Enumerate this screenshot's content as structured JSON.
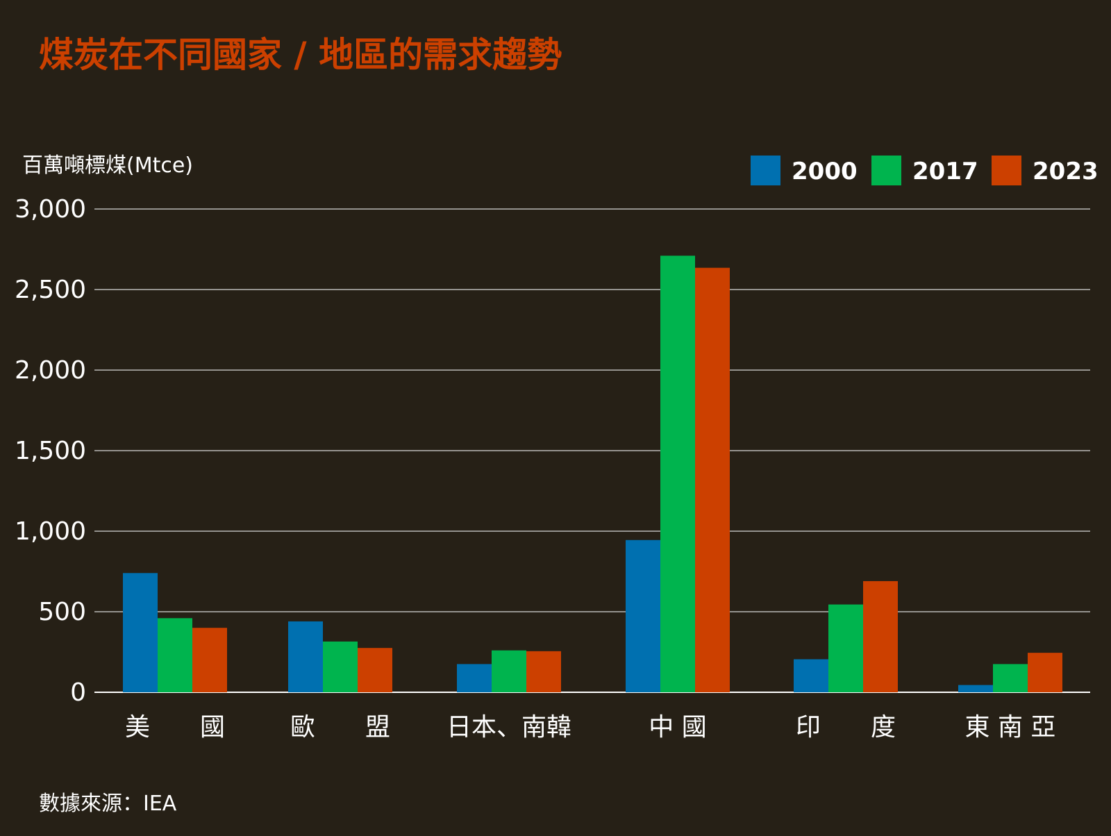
{
  "title": "煤炭在不同國家 / 地區的需求趨勢",
  "y_unit_label": "百萬噸標煤(Mtce)",
  "source": "數據來源：IEA",
  "colors": {
    "background": "#262016",
    "title": "#CC4000",
    "text": "#FFFFFF",
    "gridline": "#D8D8D8",
    "s2000": "#0070B0",
    "s2017": "#00B44E",
    "s2023": "#CC4000"
  },
  "chart_data": {
    "type": "bar",
    "title": "煤炭在不同國家 / 地區的需求趨勢",
    "ylabel": "百萬噸標煤(Mtce)",
    "xlabel": "",
    "categories": [
      "美　　國",
      "歐　　盟",
      "日本、南韓",
      "中 國",
      "印　　度",
      "東 南 亞"
    ],
    "series": [
      {
        "name": "2000",
        "color": "#0070B0",
        "values": [
          740,
          440,
          175,
          945,
          205,
          45
        ]
      },
      {
        "name": "2017",
        "color": "#00B44E",
        "values": [
          460,
          315,
          260,
          2710,
          545,
          175
        ]
      },
      {
        "name": "2023",
        "color": "#CC4000",
        "values": [
          400,
          275,
          255,
          2635,
          690,
          245
        ]
      }
    ],
    "ylim": [
      0,
      3000
    ],
    "yticks": [
      0,
      500,
      1000,
      1500,
      2000,
      2500,
      3000
    ],
    "ytick_labels": [
      "0",
      "500",
      "1,000",
      "1,500",
      "2,000",
      "2,500",
      "3,000"
    ],
    "grid": true,
    "legend_position": "top-right"
  }
}
